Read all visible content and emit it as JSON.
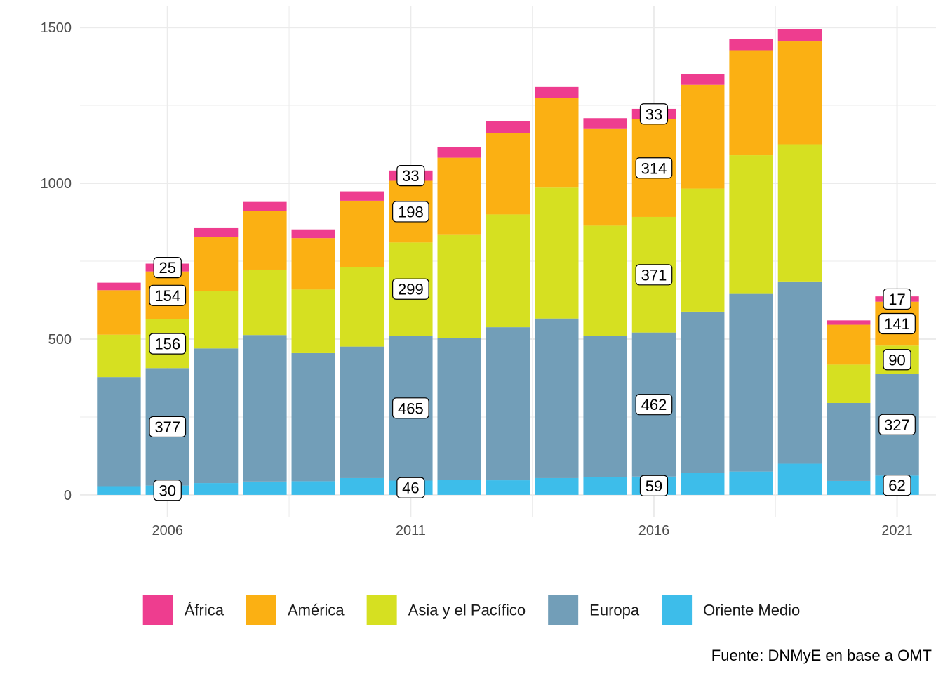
{
  "chart_data": {
    "type": "bar",
    "stacked": true,
    "x": [
      2005,
      2006,
      2007,
      2008,
      2009,
      2010,
      2011,
      2012,
      2013,
      2014,
      2015,
      2016,
      2017,
      2018,
      2019,
      2020,
      2021
    ],
    "x_ticks": [
      2006,
      2011,
      2016,
      2021
    ],
    "y_ticks": [
      0,
      500,
      1000,
      1500
    ],
    "ylim": [
      -70,
      1570
    ],
    "xlim": [
      2004.2,
      2021.8
    ],
    "grid": true,
    "legend_position": "bottom",
    "series": [
      {
        "name": "Oriente Medio",
        "color": "#3DBDEA",
        "values": [
          28,
          30,
          38,
          43,
          44,
          54,
          46,
          49,
          47,
          54,
          58,
          59,
          70,
          75,
          100,
          45,
          62
        ]
      },
      {
        "name": "Europa",
        "color": "#729EB8",
        "values": [
          350,
          377,
          432,
          470,
          411,
          422,
          465,
          455,
          491,
          512,
          453,
          462,
          518,
          570,
          585,
          250,
          327
        ]
      },
      {
        "name": "Asia y el Pacífico",
        "color": "#D6E021",
        "values": [
          136,
          156,
          185,
          210,
          204,
          255,
          299,
          330,
          362,
          420,
          353,
          371,
          395,
          445,
          440,
          123,
          90
        ]
      },
      {
        "name": "América",
        "color": "#FBB013",
        "values": [
          143,
          154,
          173,
          187,
          165,
          213,
          198,
          248,
          262,
          287,
          310,
          314,
          333,
          337,
          330,
          128,
          141
        ]
      },
      {
        "name": "África",
        "color": "#EE3D8F",
        "values": [
          24,
          25,
          28,
          30,
          28,
          30,
          33,
          34,
          37,
          36,
          35,
          33,
          35,
          36,
          40,
          14,
          17
        ]
      }
    ],
    "data_labels": [
      {
        "x": 2006,
        "values": [
          "30",
          "377",
          "156",
          "154",
          "25"
        ]
      },
      {
        "x": 2011,
        "values": [
          "46",
          "465",
          "299",
          "198",
          "33"
        ]
      },
      {
        "x": 2016,
        "values": [
          "59",
          "462",
          "371",
          "314",
          "33"
        ]
      },
      {
        "x": 2021,
        "values": [
          "62",
          "327",
          "90",
          "141",
          "17"
        ]
      }
    ],
    "legend_order": [
      "África",
      "América",
      "Asia y el Pacífico",
      "Europa",
      "Oriente Medio"
    ],
    "caption": "Fuente: DNMyE en base a OMT",
    "grid_color": "#EBEBEB"
  }
}
